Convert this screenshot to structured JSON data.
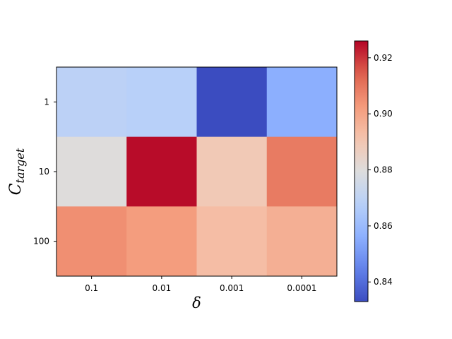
{
  "chart_data": {
    "type": "heatmap",
    "title": "",
    "xlabel_main": "δ",
    "ylabel_main": "C",
    "ylabel_sub": "target",
    "x_categories": [
      "0.1",
      "0.01",
      "0.001",
      "0.0001"
    ],
    "y_categories": [
      "1",
      "10",
      "100"
    ],
    "values": [
      [
        0.869,
        0.868,
        0.833,
        0.856
      ],
      [
        0.88,
        0.925,
        0.889,
        0.909
      ],
      [
        0.905,
        0.902,
        0.893,
        0.897
      ]
    ],
    "colormap": "coolwarm",
    "vmin": 0.833,
    "vmax": 0.926,
    "colorbar_ticks": [
      0.84,
      0.86,
      0.88,
      0.9,
      0.92
    ],
    "colorbar_tick_labels": [
      "0.84",
      "0.86",
      "0.88",
      "0.90",
      "0.92"
    ]
  }
}
